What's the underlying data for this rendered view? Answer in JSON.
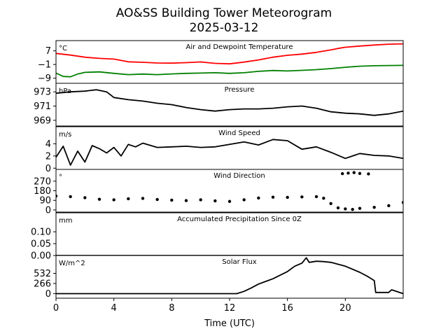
{
  "figure": {
    "title_line1": "AO&SS Building Tower Meteorogram",
    "title_line2": "2025-03-12"
  },
  "chart_data": [
    {
      "type": "line",
      "title": "Air and Dewpoint Temperature",
      "unit": "°C",
      "ylim": [
        -12,
        13
      ],
      "yticks": [
        7,
        -1,
        -9
      ],
      "ytick_labels": [
        "7",
        "−1",
        "−9"
      ],
      "series": [
        {
          "color": "#ff0000",
          "x": [
            0,
            1,
            2,
            3,
            4,
            5,
            6,
            7,
            8,
            9,
            10,
            11,
            12,
            13,
            14,
            15,
            16,
            17,
            18,
            19,
            19.5,
            20,
            21,
            22,
            23,
            24
          ],
          "values": [
            5.5,
            4.5,
            3.3,
            2.6,
            2.2,
            0.6,
            0.3,
            -0.1,
            -0.2,
            0.1,
            0.5,
            -0.3,
            -0.6,
            0.4,
            1.7,
            3.3,
            4.4,
            5.1,
            6.1,
            7.6,
            8.4,
            9.1,
            9.8,
            10.4,
            10.9,
            11.1
          ]
        },
        {
          "color": "#008000",
          "x": [
            0,
            0.5,
            1,
            1.5,
            2,
            3,
            4,
            5,
            6,
            7,
            8,
            9,
            10,
            11,
            12,
            13,
            14,
            15,
            16,
            17,
            18,
            19,
            20,
            21,
            22,
            23,
            24
          ],
          "values": [
            -6.0,
            -8.0,
            -8.2,
            -6.6,
            -5.6,
            -5.3,
            -6.2,
            -6.9,
            -6.6,
            -6.9,
            -6.5,
            -6.2,
            -6.0,
            -5.8,
            -6.2,
            -5.8,
            -5.0,
            -4.5,
            -4.8,
            -4.4,
            -4.0,
            -3.4,
            -2.6,
            -2.0,
            -1.7,
            -1.6,
            -1.5
          ]
        }
      ]
    },
    {
      "type": "line",
      "title": "Pressure",
      "unit": "hPa",
      "ylim": [
        968.2,
        974.2
      ],
      "yticks": [
        973,
        971,
        969
      ],
      "ytick_labels": [
        "973",
        "971",
        "969"
      ],
      "series": [
        {
          "color": "#000000",
          "x": [
            0,
            1,
            2,
            2.8,
            3.5,
            4,
            5,
            6,
            7,
            8,
            9,
            10,
            11,
            12,
            13,
            14,
            15,
            16,
            17,
            18,
            19,
            20,
            21,
            22,
            23,
            24
          ],
          "values": [
            972.8,
            973.0,
            973.1,
            973.3,
            973.0,
            972.2,
            971.9,
            971.7,
            971.4,
            971.2,
            970.8,
            970.5,
            970.3,
            970.5,
            970.6,
            970.6,
            970.7,
            970.9,
            971.0,
            970.7,
            970.2,
            970.0,
            969.9,
            969.7,
            969.9,
            970.3
          ]
        }
      ]
    },
    {
      "type": "line",
      "title": "Wind Speed",
      "unit": "m/s",
      "ylim": [
        -0.2,
        6.8
      ],
      "yticks": [
        4,
        2,
        0
      ],
      "ytick_labels": [
        "4",
        "2",
        "0"
      ],
      "series": [
        {
          "color": "#000000",
          "x": [
            0,
            0.5,
            1,
            1.5,
            2,
            2.5,
            3,
            3.5,
            4,
            4.5,
            5,
            5.5,
            6,
            7,
            8,
            9,
            10,
            11,
            12,
            13,
            14,
            15,
            16,
            17,
            18,
            19,
            20,
            21,
            22,
            23,
            24
          ],
          "values": [
            1.8,
            3.6,
            0.5,
            2.8,
            1.0,
            3.7,
            3.2,
            2.5,
            3.4,
            2.0,
            3.9,
            3.5,
            4.1,
            3.4,
            3.5,
            3.6,
            3.4,
            3.5,
            3.9,
            4.3,
            3.8,
            4.7,
            4.5,
            3.1,
            3.5,
            2.6,
            1.6,
            2.4,
            2.1,
            2.0,
            1.6
          ]
        }
      ]
    },
    {
      "type": "scatter",
      "title": "Wind Direction",
      "unit": "°",
      "ylim": [
        -20,
        380
      ],
      "yticks": [
        270,
        180,
        90,
        0
      ],
      "ytick_labels": [
        "270",
        "180",
        "90",
        "0"
      ],
      "series": [
        {
          "color": "#000000",
          "x": [
            0,
            1,
            2,
            3,
            4,
            5,
            6,
            7,
            8,
            9,
            10,
            11,
            12,
            13,
            14,
            15,
            16,
            17,
            18,
            18.5,
            19,
            19.5,
            20,
            20.5,
            21,
            22,
            23,
            24
          ],
          "values": [
            130,
            125,
            115,
            100,
            95,
            105,
            108,
            98,
            92,
            88,
            95,
            85,
            80,
            95,
            112,
            120,
            118,
            122,
            125,
            110,
            60,
            20,
            10,
            5,
            15,
            25,
            40,
            70
          ]
        },
        {
          "color": "#000000",
          "x": [
            19.8,
            20.2,
            20.6,
            21,
            21.6
          ],
          "values": [
            340,
            345,
            350,
            342,
            338
          ]
        }
      ]
    },
    {
      "type": "line",
      "title": "Accumulated Precipitation Since 0Z",
      "unit": "mm",
      "ylim": [
        0,
        0.18
      ],
      "yticks": [
        0.1,
        0.05,
        0.0
      ],
      "ytick_labels": [
        "0.10",
        "0.05",
        "0.00"
      ],
      "series": [
        {
          "color": "#000000",
          "x": [
            0,
            24
          ],
          "values": [
            0,
            0
          ]
        }
      ]
    },
    {
      "type": "line",
      "title": "Solar Flux",
      "unit": "W/m^2",
      "ylim": [
        -120,
        1000
      ],
      "yticks": [
        532,
        266,
        0
      ],
      "ytick_labels": [
        "532",
        "266",
        "0"
      ],
      "series": [
        {
          "color": "#000000",
          "x": [
            0,
            12.5,
            13,
            13.5,
            14,
            15,
            16,
            16.5,
            17,
            17.3,
            17.5,
            18,
            18.5,
            19,
            20,
            21,
            21.5,
            22,
            22.1,
            23,
            23.2,
            24
          ],
          "values": [
            0,
            0,
            60,
            150,
            250,
            390,
            580,
            720,
            800,
            940,
            820,
            850,
            840,
            820,
            720,
            560,
            460,
            340,
            30,
            30,
            100,
            0
          ]
        }
      ]
    }
  ],
  "x_axis": {
    "label": "Time (UTC)",
    "range": [
      0,
      24
    ],
    "ticks": [
      0,
      4,
      8,
      12,
      16,
      20
    ],
    "tick_labels": [
      "0",
      "4",
      "8",
      "12",
      "16",
      "20"
    ]
  }
}
